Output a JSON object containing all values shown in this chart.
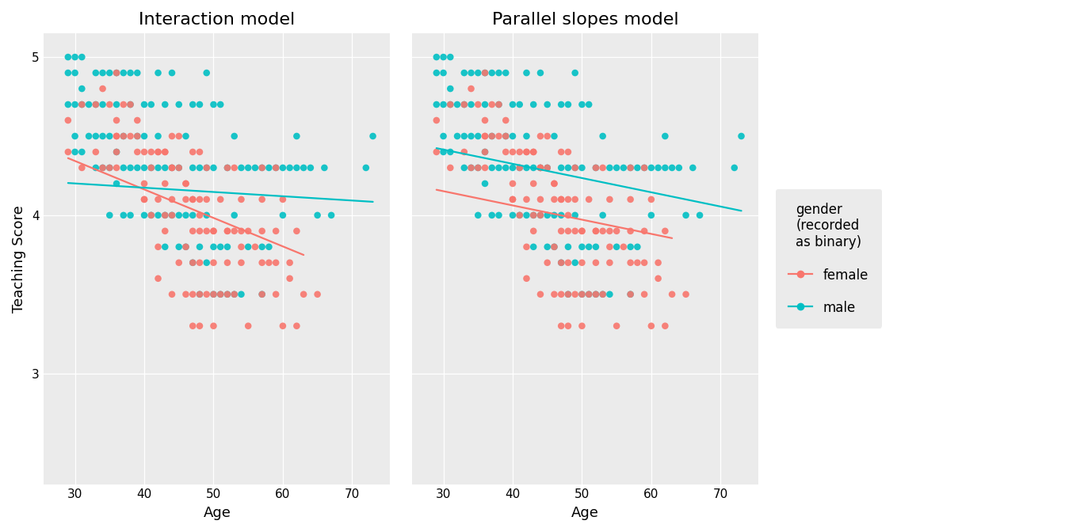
{
  "title_left": "Interaction model",
  "title_right": "Parallel slopes model",
  "xlabel": "Age",
  "ylabel": "Teaching Score",
  "legend_title": "gender\n(recorded\nas binary)",
  "legend_labels": [
    "female",
    "male"
  ],
  "female_color": "#F8766D",
  "male_color": "#00BFC4",
  "bg_color": "#EBEBEB",
  "xlim": [
    25.5,
    75.5
  ],
  "ylim": [
    2.3,
    5.15
  ],
  "xticks": [
    30,
    40,
    50,
    60,
    70
  ],
  "yticks": [
    3.0,
    4.0,
    5.0
  ],
  "point_size": 38,
  "point_alpha": 0.9,
  "line_width": 1.6,
  "female_age": [
    36,
    36,
    36,
    36,
    36,
    39,
    39,
    40,
    40,
    40,
    40,
    41,
    41,
    42,
    42,
    42,
    42,
    43,
    43,
    43,
    43,
    44,
    44,
    44,
    44,
    44,
    45,
    45,
    46,
    46,
    46,
    46,
    47,
    47,
    47,
    47,
    47,
    47,
    48,
    48,
    48,
    48,
    48,
    48,
    49,
    49,
    49,
    49,
    50,
    50,
    50,
    50,
    51,
    51,
    52,
    52,
    52,
    52,
    53,
    53,
    53,
    54,
    54,
    54,
    55,
    55,
    57,
    57,
    57,
    57,
    57,
    59,
    59,
    59,
    60,
    60,
    61,
    62,
    62,
    63,
    29,
    29,
    31,
    31,
    33,
    33,
    34,
    34,
    35,
    35,
    36,
    37,
    37,
    38,
    38,
    39,
    41,
    42,
    43,
    44,
    45,
    46,
    47,
    48,
    50,
    52,
    54,
    56,
    58,
    59,
    61,
    65
  ],
  "female_score": [
    4.3,
    4.4,
    4.5,
    4.5,
    4.9,
    4.4,
    4.5,
    4.1,
    4.1,
    4.2,
    4.4,
    4.0,
    4.4,
    3.6,
    3.8,
    4.1,
    4.4,
    3.9,
    4.0,
    4.2,
    4.4,
    3.5,
    4.0,
    4.1,
    4.3,
    4.5,
    3.7,
    4.5,
    3.5,
    3.8,
    4.1,
    4.2,
    3.3,
    3.5,
    3.7,
    3.9,
    4.1,
    4.4,
    3.3,
    3.5,
    3.7,
    3.9,
    4.1,
    4.4,
    3.5,
    3.9,
    4.1,
    4.3,
    3.3,
    3.5,
    3.7,
    3.9,
    3.5,
    4.1,
    3.5,
    3.7,
    3.9,
    4.3,
    3.5,
    3.9,
    4.3,
    3.7,
    3.9,
    4.1,
    3.3,
    3.9,
    3.5,
    3.7,
    3.9,
    4.1,
    4.3,
    3.5,
    3.9,
    4.3,
    3.3,
    4.1,
    3.7,
    3.3,
    3.9,
    3.5,
    4.4,
    4.6,
    4.3,
    4.7,
    4.7,
    4.4,
    4.3,
    4.8,
    4.3,
    4.7,
    4.6,
    4.5,
    4.7,
    4.5,
    4.7,
    4.6,
    4.3,
    4.4,
    4.4,
    4.3,
    4.3,
    4.2,
    4.1,
    4.0,
    3.9,
    3.9,
    3.8,
    3.8,
    3.7,
    3.7,
    3.6,
    3.5
  ],
  "male_age": [
    29,
    29,
    29,
    30,
    30,
    30,
    30,
    30,
    31,
    31,
    31,
    31,
    32,
    32,
    33,
    33,
    33,
    33,
    34,
    34,
    34,
    34,
    35,
    35,
    35,
    35,
    36,
    36,
    36,
    36,
    37,
    37,
    37,
    37,
    38,
    38,
    38,
    38,
    39,
    39,
    39,
    40,
    40,
    40,
    40,
    41,
    41,
    41,
    42,
    42,
    42,
    42,
    43,
    43,
    43,
    43,
    44,
    44,
    44,
    45,
    45,
    45,
    45,
    46,
    46,
    46,
    47,
    47,
    47,
    47,
    48,
    48,
    48,
    48,
    49,
    49,
    49,
    49,
    50,
    50,
    50,
    50,
    51,
    51,
    51,
    52,
    52,
    52,
    53,
    53,
    53,
    54,
    54,
    55,
    55,
    56,
    57,
    57,
    57,
    58,
    58,
    59,
    60,
    60,
    61,
    62,
    62,
    63,
    64,
    65,
    66,
    67,
    72,
    73
  ],
  "male_score": [
    4.7,
    4.9,
    5.0,
    4.4,
    4.5,
    4.7,
    4.9,
    5.0,
    4.4,
    4.7,
    4.8,
    5.0,
    4.5,
    4.7,
    4.3,
    4.5,
    4.7,
    4.9,
    4.3,
    4.5,
    4.7,
    4.9,
    4.0,
    4.3,
    4.5,
    4.9,
    4.2,
    4.4,
    4.7,
    4.9,
    4.0,
    4.3,
    4.5,
    4.9,
    4.0,
    4.3,
    4.7,
    4.9,
    4.3,
    4.5,
    4.9,
    4.0,
    4.3,
    4.5,
    4.7,
    4.0,
    4.3,
    4.7,
    4.0,
    4.3,
    4.5,
    4.9,
    3.8,
    4.0,
    4.3,
    4.7,
    4.0,
    4.3,
    4.9,
    3.8,
    4.0,
    4.3,
    4.7,
    3.8,
    4.0,
    4.5,
    3.7,
    4.0,
    4.3,
    4.7,
    3.5,
    3.8,
    4.3,
    4.7,
    3.7,
    4.0,
    4.3,
    4.9,
    3.5,
    3.8,
    4.3,
    4.7,
    3.5,
    3.8,
    4.7,
    3.5,
    3.8,
    4.3,
    3.5,
    4.0,
    4.5,
    3.5,
    4.3,
    3.8,
    4.3,
    4.3,
    3.5,
    3.8,
    4.3,
    3.8,
    4.3,
    4.3,
    4.3,
    4.0,
    4.3,
    4.5,
    4.3,
    4.3,
    4.3,
    4.0,
    4.3,
    4.0,
    4.3,
    4.5
  ],
  "interaction_female_line": {
    "x0": 29,
    "x1": 63,
    "slope": -0.018,
    "intercept": 4.883
  },
  "interaction_male_line": {
    "x0": 29,
    "x1": 73,
    "slope": -0.0027,
    "intercept": 4.282
  },
  "parallel_female_line": {
    "x0": 29,
    "x1": 63,
    "slope": -0.009,
    "intercept": 4.422
  },
  "parallel_male_line": {
    "x0": 29,
    "x1": 73,
    "slope": -0.009,
    "intercept": 4.685
  },
  "figsize": [
    13.44,
    6.72
  ],
  "dpi": 100
}
